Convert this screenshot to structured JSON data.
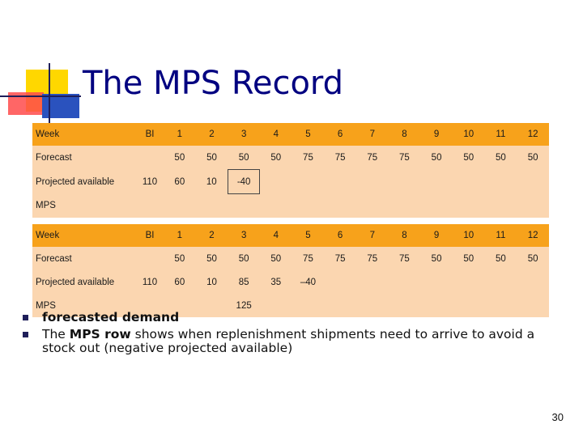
{
  "title": "The MPS Record",
  "table_columns": [
    "Week",
    "BI",
    "1",
    "2",
    "3",
    "4",
    "5",
    "6",
    "7",
    "8",
    "9",
    "10",
    "11",
    "12"
  ],
  "table1": {
    "rows": [
      {
        "label": "Forecast",
        "bi": "",
        "cells": [
          "50",
          "50",
          "50",
          "50",
          "75",
          "75",
          "75",
          "75",
          "50",
          "50",
          "50",
          "50"
        ]
      },
      {
        "label": "Projected available",
        "bi": "110",
        "cells": [
          "60",
          "10",
          "-40",
          "",
          "",
          "",
          "",
          "",
          "",
          "",
          "",
          ""
        ]
      },
      {
        "label": "MPS",
        "bi": "",
        "cells": [
          "",
          "",
          "",
          "",
          "",
          "",
          "",
          "",
          "",
          "",
          "",
          ""
        ]
      }
    ]
  },
  "table2": {
    "rows": [
      {
        "label": "Forecast",
        "bi": "",
        "cells": [
          "50",
          "50",
          "50",
          "50",
          "75",
          "75",
          "75",
          "75",
          "50",
          "50",
          "50",
          "50"
        ]
      },
      {
        "label": "Projected available",
        "bi": "110",
        "cells": [
          "60",
          "10",
          "85",
          "35",
          "–40",
          "",
          "",
          "",
          "",
          "",
          "",
          ""
        ]
      },
      {
        "label": "MPS",
        "bi": "",
        "cells": [
          "",
          "",
          "125",
          "",
          "",
          "",
          "",
          "",
          "",
          "",
          "",
          ""
        ]
      }
    ]
  },
  "bullets": {
    "b1_bold": "forecasted demand",
    "b2_pre": "The ",
    "b2_bold": "MPS row",
    "b2_post": " shows when replenishment shipments need to arrive to avoid a stock out (negative projected available)"
  },
  "page_number": "30",
  "colors": {
    "header": "#f7a21b",
    "body": "#fbd6b0",
    "title": "#000080"
  }
}
